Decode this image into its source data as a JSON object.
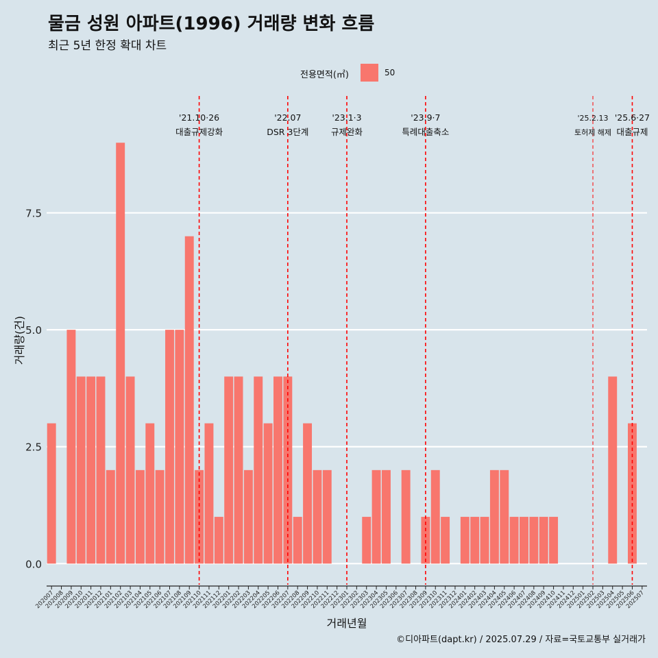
{
  "title": "물금 성원 아파트(1996) 거래량 변화 흐름",
  "subtitle": "최근 5년 한정 확대 차트",
  "legend": {
    "title": "전용면적(㎡)",
    "label": "50",
    "color": "#f8766d"
  },
  "caption": "©디아파트(dapt.kr) / 2025.07.29 / 자료=국토교통부 실거래가",
  "colors": {
    "background": "#d8e4eb",
    "bar": "#f8766d",
    "grid": "#ffffff",
    "event_line": "#ff0000"
  },
  "chart_data": {
    "type": "bar",
    "xlabel": "거래년월",
    "ylabel": "거래량(건)",
    "ylim": [
      -0.45,
      10
    ],
    "yticks": [
      0.0,
      2.5,
      5.0,
      7.5
    ],
    "ytick_labels": [
      "0.0",
      "2.5",
      "5.0",
      "7.5"
    ],
    "grid": true,
    "legend_position": "top",
    "categories": [
      "202007",
      "202008",
      "202009",
      "202010",
      "202011",
      "202012",
      "202101",
      "202102",
      "202103",
      "202104",
      "202105",
      "202106",
      "202107",
      "202108",
      "202109",
      "202110",
      "202111",
      "202112",
      "202201",
      "202202",
      "202203",
      "202204",
      "202205",
      "202206",
      "202207",
      "202208",
      "202209",
      "202210",
      "202211",
      "202212",
      "202301",
      "202302",
      "202303",
      "202304",
      "202305",
      "202306",
      "202307",
      "202308",
      "202309",
      "202310",
      "202311",
      "202312",
      "202401",
      "202402",
      "202403",
      "202404",
      "202405",
      "202406",
      "202407",
      "202408",
      "202409",
      "202410",
      "202411",
      "202412",
      "202501",
      "202502",
      "202503",
      "202504",
      "202505",
      "202506",
      "202507"
    ],
    "series": [
      {
        "name": "50",
        "values": [
          3,
          0,
          5,
          4,
          4,
          4,
          2,
          9,
          4,
          2,
          3,
          2,
          5,
          5,
          7,
          2,
          3,
          1,
          4,
          4,
          2,
          4,
          3,
          4,
          4,
          1,
          3,
          2,
          2,
          0,
          0,
          0,
          1,
          2,
          2,
          0,
          2,
          0,
          1,
          2,
          1,
          0,
          1,
          1,
          1,
          2,
          2,
          1,
          1,
          1,
          1,
          1,
          0,
          0,
          0,
          0,
          0,
          4,
          0,
          3,
          0
        ]
      }
    ],
    "events": [
      {
        "date": "'21.10·26",
        "label": "대출규제강화",
        "index": 15.0
      },
      {
        "date": "'22.07",
        "label": "DSR 3단계",
        "index": 24.0
      },
      {
        "date": "'23.1·3",
        "label": "규제완화",
        "index": 30.0
      },
      {
        "date": "'23.9·7",
        "label": "특례대출축소",
        "index": 38.0
      },
      {
        "date": "'25.2.13",
        "label": "토허제 해제",
        "index": 55.0
      },
      {
        "date": "'25.6·27",
        "label": "대출규제",
        "index": 59.0
      }
    ]
  }
}
